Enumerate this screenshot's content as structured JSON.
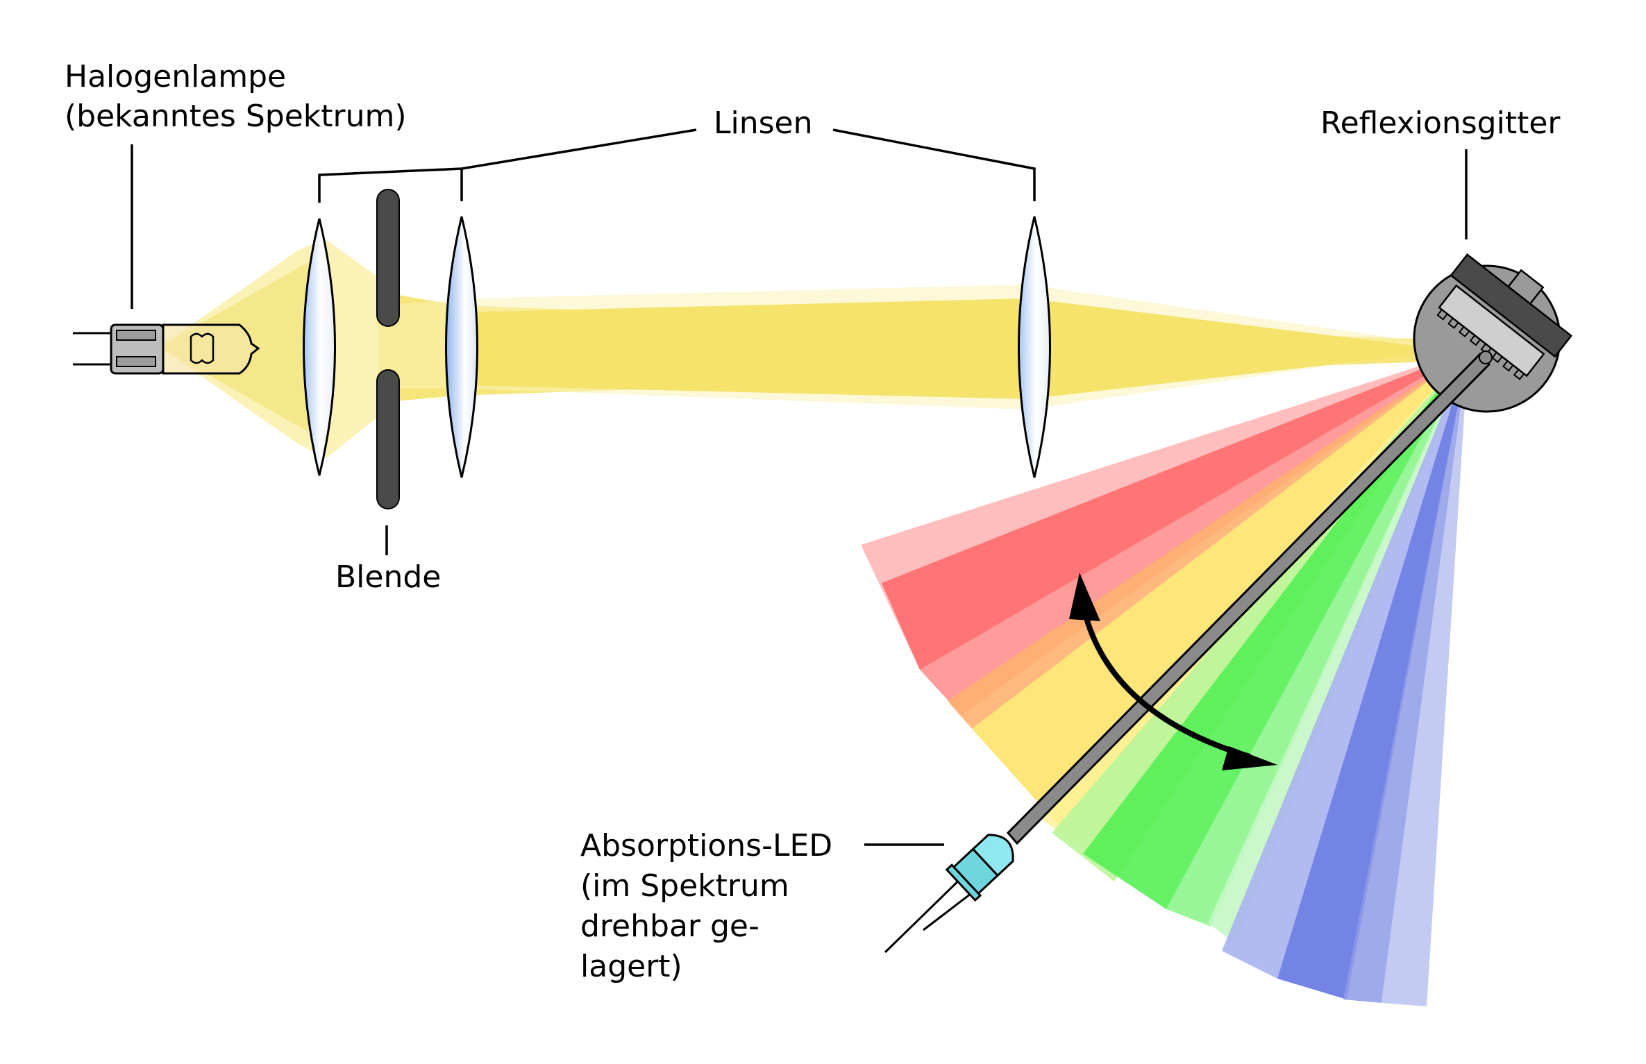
{
  "labels": {
    "lamp_line1": "Halogenlampe",
    "lamp_line2": "(bekanntes Spektrum)",
    "lenses": "Linsen",
    "grating": "Reflexionsgitter",
    "aperture": "Blende",
    "led_line1": "Absorptions-LED",
    "led_line2": "(im Spektrum",
    "led_line3": "drehbar ge-",
    "led_line4": "lagert)"
  },
  "colors": {
    "beam": "#f5e36b",
    "beam_light": "#fbf2b8",
    "red": "#ff6b6b",
    "orange": "#ffb070",
    "yellow": "#ffe36a",
    "green": "#55f055",
    "blue": "#5a6fe0",
    "dark_gray": "#4a4a4a",
    "led": "#8fe8f0"
  }
}
